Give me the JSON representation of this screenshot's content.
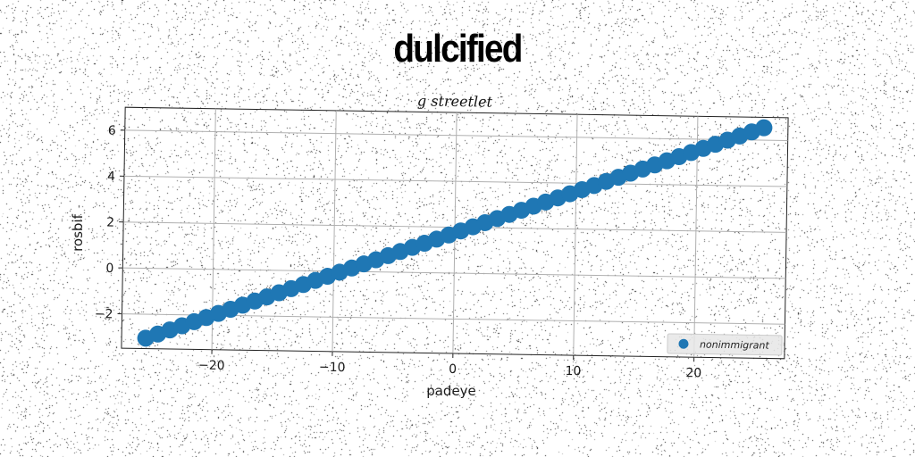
{
  "chart_data": {
    "type": "scatter",
    "title": "dulcified",
    "subtitle": "g streetlet",
    "xlabel": "padeye",
    "ylabel": "rosbif",
    "xlim": [
      -27.5,
      27.5
    ],
    "ylim": [
      -3.5,
      7.0
    ],
    "xticks": [
      -20,
      -10,
      0,
      10,
      20
    ],
    "yticks": [
      -2,
      0,
      2,
      4,
      6
    ],
    "xtick_labels": [
      "−20",
      "−10",
      "0",
      "10",
      "20"
    ],
    "ytick_labels": [
      "−2",
      "0",
      "2",
      "4",
      "6"
    ],
    "grid": true,
    "legend_position": "lower-right",
    "series": [
      {
        "name": "nonimmigrant",
        "color": "#1f77b4",
        "x_range": [
          -25.5,
          25.5
        ],
        "point_count": 52,
        "slope": 0.188,
        "intercept": 1.75
      }
    ]
  }
}
